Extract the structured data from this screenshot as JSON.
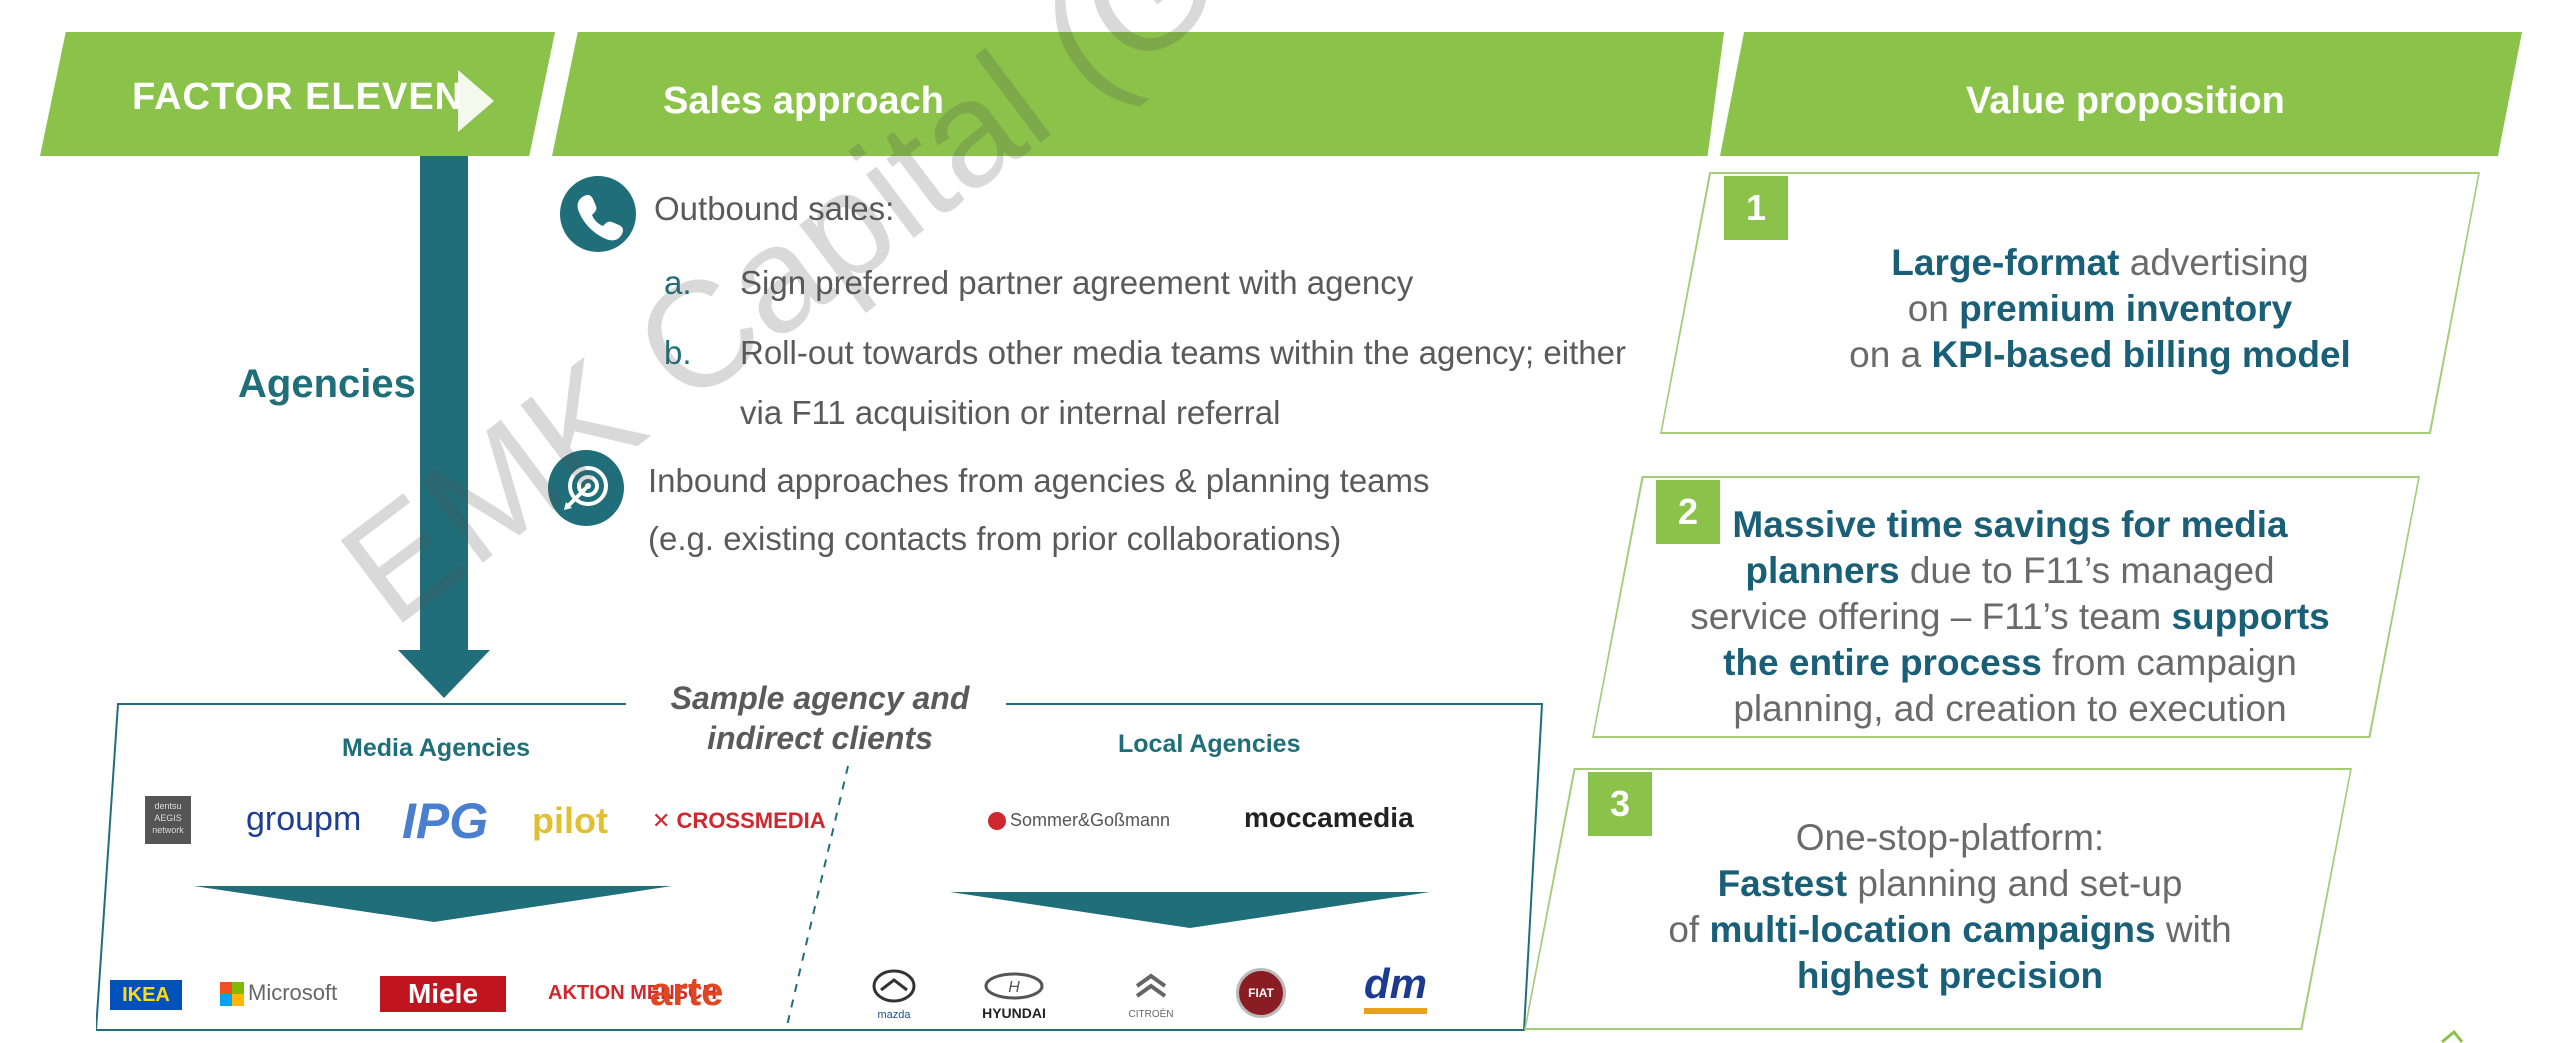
{
  "header": {
    "logo_text": "FACTOR ELEVEN",
    "sales_title": "Sales approach",
    "value_title": "Value proposition"
  },
  "left": {
    "agencies_label": "Agencies"
  },
  "sales": {
    "outbound_label": "Outbound sales:",
    "items": [
      {
        "letter": "a.",
        "lines": [
          "Sign preferred partner agreement with agency"
        ]
      },
      {
        "letter": "b.",
        "lines": [
          "Roll-out towards other media teams within the agency; either",
          "via F11 acquisition or internal referral"
        ]
      }
    ],
    "inbound_lines": [
      "Inbound approaches from agencies & planning teams",
      "(e.g. existing contacts from prior collaborations)"
    ]
  },
  "sample": {
    "title_lines": [
      "Sample agency and",
      "indirect clients"
    ],
    "media_agencies_label": "Media Agencies",
    "local_agencies_label": "Local Agencies",
    "media_agency_logos": [
      "dentsu AEGIS network",
      "groupm",
      "IPG",
      "pilot",
      "CROSSMEDIA"
    ],
    "local_agency_logos": [
      "Sommer&Goßmann",
      "moccamedia"
    ],
    "media_client_logos": [
      "IKEA",
      "Microsoft",
      "Miele",
      "AKTION MENSCH",
      "arte"
    ],
    "local_client_logos": [
      "mazda",
      "HYUNDAI",
      "CITROËN",
      "FIAT",
      "dm"
    ]
  },
  "value": {
    "items": [
      {
        "number": "1",
        "segments": [
          {
            "t": "Large-format",
            "b": true
          },
          {
            "t": " advertising",
            "b": false
          },
          {
            "t": "\n",
            "b": false
          },
          {
            "t": "on ",
            "b": false
          },
          {
            "t": "premium inventory",
            "b": true
          },
          {
            "t": "\n",
            "b": false
          },
          {
            "t": "on a ",
            "b": false
          },
          {
            "t": "KPI-based billing model",
            "b": true
          }
        ]
      },
      {
        "number": "2",
        "segments": [
          {
            "t": "Massive time savings for media",
            "b": true
          },
          {
            "t": "\n",
            "b": false
          },
          {
            "t": "planners",
            "b": true
          },
          {
            "t": " due to F11’s managed",
            "b": false
          },
          {
            "t": "\n",
            "b": false
          },
          {
            "t": "service offering – F11’s team ",
            "b": false
          },
          {
            "t": "supports",
            "b": true
          },
          {
            "t": "\n",
            "b": false
          },
          {
            "t": "the entire process",
            "b": true
          },
          {
            "t": " from campaign",
            "b": false
          },
          {
            "t": "\n",
            "b": false
          },
          {
            "t": "planning, ad creation to execution",
            "b": false
          }
        ]
      },
      {
        "number": "3",
        "segments": [
          {
            "t": "One-stop-platform:",
            "b": false
          },
          {
            "t": "\n",
            "b": false
          },
          {
            "t": "Fastest",
            "b": true
          },
          {
            "t": " planning and set-up",
            "b": false
          },
          {
            "t": "\n",
            "b": false
          },
          {
            "t": "of ",
            "b": false
          },
          {
            "t": "multi-location campaigns",
            "b": true
          },
          {
            "t": " with",
            "b": false
          },
          {
            "t": "\n",
            "b": false
          },
          {
            "t": "highest precision",
            "b": true
          }
        ]
      }
    ]
  },
  "watermark": "EMK Capital (Germany) GmbH",
  "colors": {
    "green": "#8bc24a",
    "teal": "#1f6e7a",
    "navy": "#1a5f78",
    "grey": "#5a5a5a"
  }
}
